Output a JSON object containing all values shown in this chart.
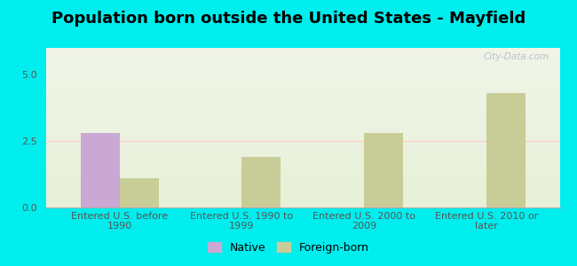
{
  "title": "Population born outside the United States - Mayfield",
  "categories": [
    "Entered U.S. before\n1990",
    "Entered U.S. 1990 to\n1999",
    "Entered U.S. 2000 to\n2009",
    "Entered U.S. 2010 or\nlater"
  ],
  "native_values": [
    2.8,
    0,
    0,
    0
  ],
  "foreign_values": [
    1.1,
    1.9,
    2.8,
    4.3
  ],
  "native_color": "#c9a8d4",
  "foreign_color": "#c8cc96",
  "background_color": "#00eeee",
  "ylim": [
    0,
    6
  ],
  "yticks": [
    0,
    2.5,
    5
  ],
  "bar_width": 0.32,
  "title_fontsize": 13,
  "tick_fontsize": 8,
  "legend_labels": [
    "Native",
    "Foreign-born"
  ],
  "watermark": "City-Data.com",
  "hline_y": 2.5,
  "hline_color": "#ffcccc"
}
